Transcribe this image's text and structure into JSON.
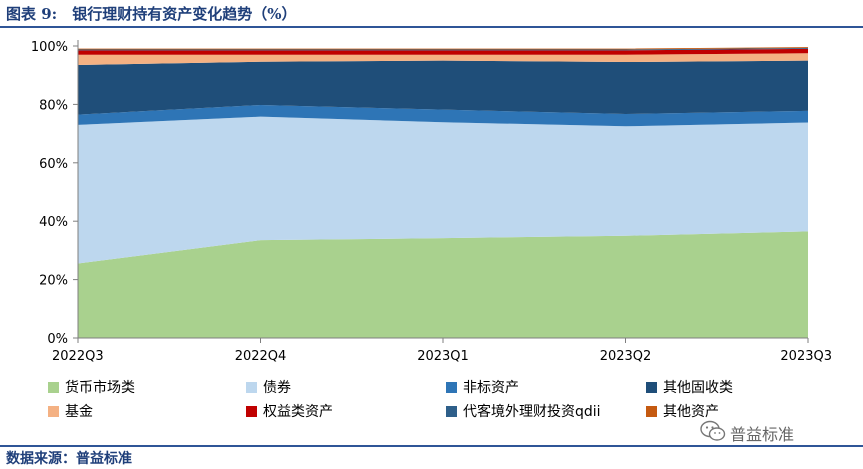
{
  "figure": {
    "title": "图表 9:　银行理财持有资产变化趋势（%）",
    "source": "数据来源：普益标准"
  },
  "watermark": {
    "text": "普益标准",
    "icon": "wechat-icon"
  },
  "chart_data": {
    "type": "area",
    "stacked": true,
    "title": "",
    "xlabel": "",
    "ylabel": "",
    "ylim": [
      0,
      100
    ],
    "yticks": [
      "0%",
      "20%",
      "40%",
      "60%",
      "80%",
      "100%"
    ],
    "categories": [
      "2022Q3",
      "2022Q4",
      "2023Q1",
      "2023Q2",
      "2023Q3"
    ],
    "legend_position": "bottom",
    "series": [
      {
        "name": "货币市场类",
        "color": "#a9d18e",
        "values": [
          25.5,
          33.5,
          34.2,
          35.0,
          36.5
        ]
      },
      {
        "name": "债券",
        "color": "#bdd7ee",
        "values": [
          47.5,
          42.3,
          39.7,
          37.5,
          37.3
        ]
      },
      {
        "name": "非标资产",
        "color": "#2e75b6",
        "values": [
          3.5,
          4.0,
          4.3,
          4.2,
          4.0
        ]
      },
      {
        "name": "其他固收类",
        "color": "#1f4e79",
        "values": [
          17.0,
          14.8,
          16.8,
          17.8,
          17.2
        ]
      },
      {
        "name": "基金",
        "color": "#f4b183",
        "values": [
          3.5,
          2.4,
          2.0,
          2.5,
          2.5
        ]
      },
      {
        "name": "权益类资产",
        "color": "#c00000",
        "values": [
          1.5,
          1.5,
          1.5,
          1.5,
          1.5
        ]
      },
      {
        "name": "代客境外理财投资qdii",
        "color": "#2e5f8a",
        "values": [
          0.3,
          0.3,
          0.3,
          0.3,
          0.3
        ]
      },
      {
        "name": "其他资产",
        "color": "#c55a11",
        "values": [
          0.3,
          0.3,
          0.3,
          0.3,
          0.3
        ]
      }
    ]
  }
}
